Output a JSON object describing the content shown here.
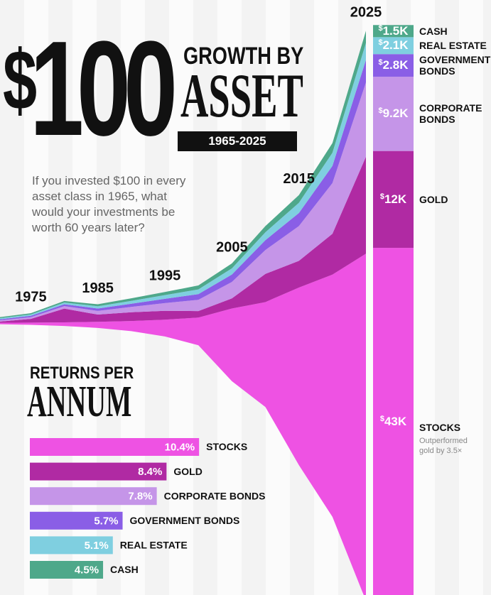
{
  "header": {
    "amount": "$100",
    "title_top": "GROWTH BY",
    "title_main": "ASSET",
    "period": "1965-2025",
    "question": "If you invested $100 in every asset class in 1965, what would your investments be worth 60 years later?"
  },
  "chart_data": [
    {
      "type": "area",
      "x": [
        1965,
        1970,
        1975,
        1980,
        1985,
        1990,
        1995,
        2000,
        2005,
        2010,
        2015,
        2020,
        2025
      ],
      "xlim": [
        1965,
        2025
      ],
      "xticks": [
        1975,
        1985,
        1995,
        2005,
        2015,
        2025
      ],
      "series": [
        {
          "name": "STOCKS",
          "color": "#ee52e3",
          "values": [
            100,
            166,
            275,
            456,
            755,
            1251,
            2073,
            3435,
            9000,
            13000,
            22000,
            30000,
            43000
          ],
          "value_labels": [
            null,
            null,
            null,
            null,
            null,
            null,
            null,
            null,
            null,
            null,
            null,
            null,
            "$43K"
          ]
        },
        {
          "name": "GOLD",
          "color": "#b02aa3",
          "values": [
            100,
            125,
            457,
            1700,
            900,
            1090,
            1100,
            800,
            1260,
            3490,
            3310,
            5060,
            12000
          ],
          "value_labels": [
            null,
            null,
            null,
            null,
            null,
            null,
            null,
            null,
            null,
            null,
            null,
            null,
            "$12K"
          ]
        },
        {
          "name": "CORPORATE BONDS",
          "color": "#c595e8",
          "values": [
            100,
            146,
            212,
            309,
            450,
            656,
            956,
            1393,
            2030,
            2958,
            4310,
            6280,
            9200
          ],
          "value_labels": [
            null,
            null,
            null,
            null,
            null,
            null,
            null,
            null,
            null,
            null,
            null,
            null,
            "$9.2K"
          ]
        },
        {
          "name": "GOVERNMENT BONDS",
          "color": "#8a5ee6",
          "values": [
            100,
            132,
            174,
            230,
            304,
            401,
            530,
            700,
            924,
            1220,
            1610,
            2126,
            2800
          ],
          "value_labels": [
            null,
            null,
            null,
            null,
            null,
            null,
            null,
            null,
            null,
            null,
            null,
            null,
            "$2.8K"
          ]
        },
        {
          "name": "REAL ESTATE",
          "color": "#7fcfe0",
          "values": [
            100,
            129,
            166,
            214,
            276,
            356,
            459,
            592,
            763,
            983,
            1267,
            1633,
            2100
          ],
          "value_labels": [
            null,
            null,
            null,
            null,
            null,
            null,
            null,
            null,
            null,
            null,
            null,
            null,
            "$2.1K"
          ]
        },
        {
          "name": "CASH",
          "color": "#4ea88a",
          "values": [
            100,
            125,
            157,
            197,
            247,
            309,
            387,
            485,
            608,
            762,
            955,
            1197,
            1500
          ],
          "value_labels": [
            null,
            null,
            null,
            null,
            null,
            null,
            null,
            null,
            null,
            null,
            null,
            null,
            "$1.5K"
          ]
        }
      ],
      "annotation": "Outperformed gold by 3.5×"
    },
    {
      "type": "bar",
      "title": "RETURNS PER",
      "subtitle": "ANNUM",
      "categories": [
        "STOCKS",
        "GOLD",
        "CORPORATE BONDS",
        "GOVERNMENT BONDS",
        "REAL ESTATE",
        "CASH"
      ],
      "values": [
        10.4,
        8.4,
        7.8,
        5.7,
        5.1,
        4.5
      ],
      "value_labels": [
        "10.4%",
        "8.4%",
        "7.8%",
        "5.7%",
        "5.1%",
        "4.5%"
      ],
      "colors": [
        "#ee52e3",
        "#b02aa3",
        "#c595e8",
        "#8a5ee6",
        "#7fcfe0",
        "#4ea88a"
      ]
    }
  ]
}
